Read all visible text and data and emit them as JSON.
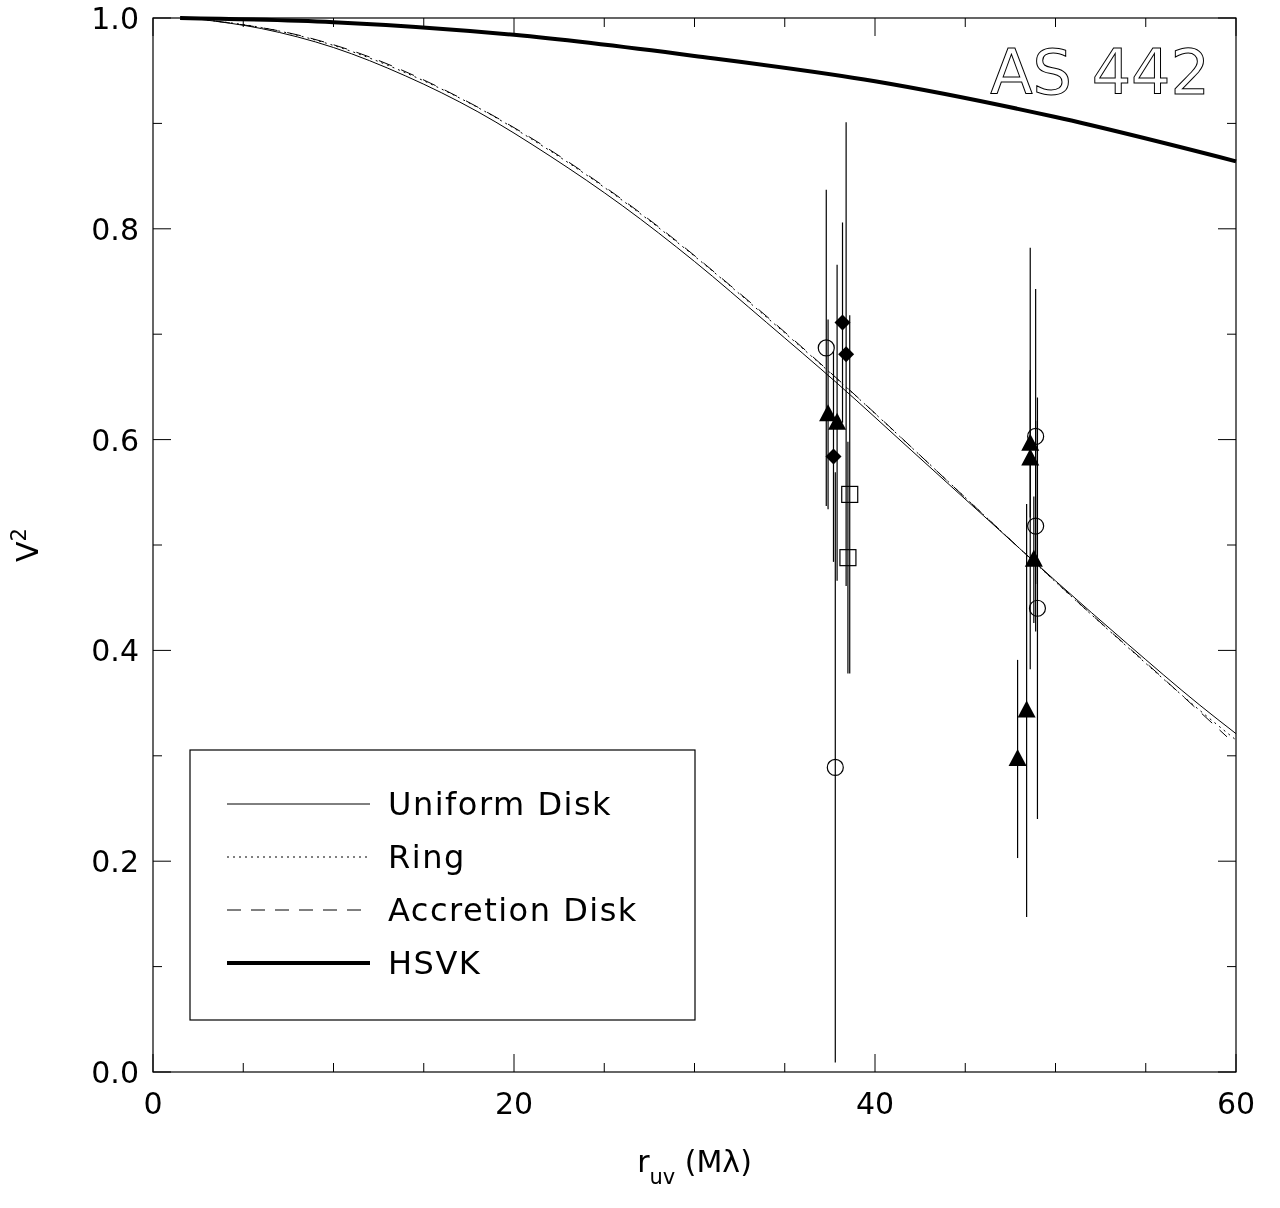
{
  "chart_data": {
    "type": "line",
    "title": "AS 442",
    "xlabel": "r$_{uv}$ (Mλ)",
    "ylabel": "V$^{2}$",
    "xlim": [
      0,
      60
    ],
    "ylim": [
      0,
      1
    ],
    "xticks": [
      0,
      {
        "value": 5,
        "label": null
      },
      {
        "value": 10,
        "label": null
      },
      {
        "value": 15,
        "label": null
      },
      20,
      {
        "value": 25,
        "label": null
      },
      {
        "value": 30,
        "label": null
      },
      {
        "value": 35,
        "label": null
      },
      40,
      {
        "value": 45,
        "label": null
      },
      {
        "value": 50,
        "label": null
      },
      {
        "value": 55,
        "label": null
      },
      60
    ],
    "yticks": [
      {
        "value": 0,
        "label": "0.0"
      },
      {
        "value": 0.1,
        "label": null
      },
      {
        "value": 0.2,
        "label": "0.2"
      },
      {
        "value": 0.3,
        "label": null
      },
      {
        "value": 0.4,
        "label": "0.4"
      },
      {
        "value": 0.5,
        "label": null
      },
      {
        "value": 0.6,
        "label": "0.6"
      },
      {
        "value": 0.7,
        "label": null
      },
      {
        "value": 0.8,
        "label": "0.8"
      },
      {
        "value": 0.9,
        "label": null
      },
      {
        "value": 1,
        "label": "1.0"
      }
    ],
    "grid": false,
    "legend": "bottom left",
    "series": [
      {
        "name": "Uniform Disk",
        "type": "line",
        "color": "#000000",
        "line_style": "solid",
        "x": [
          2.5,
          6,
          10,
          14,
          18,
          22,
          26,
          30,
          34,
          38,
          42,
          46,
          50,
          54,
          58,
          60
        ],
        "values": [
          0.999,
          0.99,
          0.972,
          0.945,
          0.911,
          0.869,
          0.822,
          0.769,
          0.711,
          0.652,
          0.59,
          0.528,
          0.466,
          0.406,
          0.348,
          0.321
        ]
      },
      {
        "name": "Ring",
        "type": "line",
        "color": "#000000",
        "line_style": "dotted",
        "x": [
          3,
          6,
          10,
          14,
          18,
          22,
          26,
          30,
          34,
          38,
          42,
          46,
          50,
          54,
          58,
          60
        ],
        "values": [
          0.998,
          0.991,
          0.974,
          0.948,
          0.915,
          0.874,
          0.827,
          0.774,
          0.716,
          0.656,
          0.593,
          0.529,
          0.465,
          0.403,
          0.343,
          0.315
        ]
      },
      {
        "name": "Accretion Disk",
        "type": "line",
        "color": "#000000",
        "line_style": "dashed",
        "x": [
          3.5,
          8,
          12,
          16,
          20,
          24,
          28,
          32,
          36,
          40,
          44,
          48,
          52,
          56,
          59.5
        ],
        "values": [
          0.997,
          0.984,
          0.963,
          0.933,
          0.896,
          0.852,
          0.802,
          0.746,
          0.687,
          0.625,
          0.561,
          0.497,
          0.434,
          0.373,
          0.318
        ]
      },
      {
        "name": "HSVK",
        "type": "line",
        "color": "#000000",
        "line_style": "solid",
        "x": [
          1.5,
          10,
          20,
          30,
          40,
          50,
          60
        ],
        "values": [
          1.0,
          0.996,
          0.984,
          0.964,
          0.94,
          0.906,
          0.864
        ]
      },
      {
        "type": "scatter",
        "color": "#000000",
        "marker": "circle",
        "x": [
          37.3,
          37.8,
          48.9,
          48.9,
          49.0
        ],
        "values": [
          0.687,
          0.289,
          0.603,
          0.518,
          0.44
        ],
        "errors": [
          0.15,
          0.28,
          0.14,
          0.1,
          0.2
        ]
      },
      {
        "type": "scatter",
        "color": "#000000",
        "marker": "diamond",
        "x": [
          38.2,
          38.4,
          37.7
        ],
        "values": [
          0.711,
          0.681,
          0.584
        ],
        "errors": [
          0.095,
          0.22,
          0.1
        ]
      },
      {
        "type": "scatter",
        "color": "#000000",
        "marker": "triangle",
        "x": [
          37.4,
          37.9,
          48.6,
          48.6,
          48.8,
          48.4,
          47.9
        ],
        "values": [
          0.624,
          0.616,
          0.596,
          0.582,
          0.486,
          0.343,
          0.297
        ],
        "errors": [
          0.09,
          0.15,
          0.07,
          0.2,
          0.06,
          0.196,
          0.094
        ]
      },
      {
        "type": "scatter",
        "color": "#000000",
        "marker": "square",
        "x": [
          38.6,
          38.5
        ],
        "values": [
          0.548,
          0.488
        ],
        "errors": [
          0.17,
          0.11
        ]
      }
    ]
  }
}
